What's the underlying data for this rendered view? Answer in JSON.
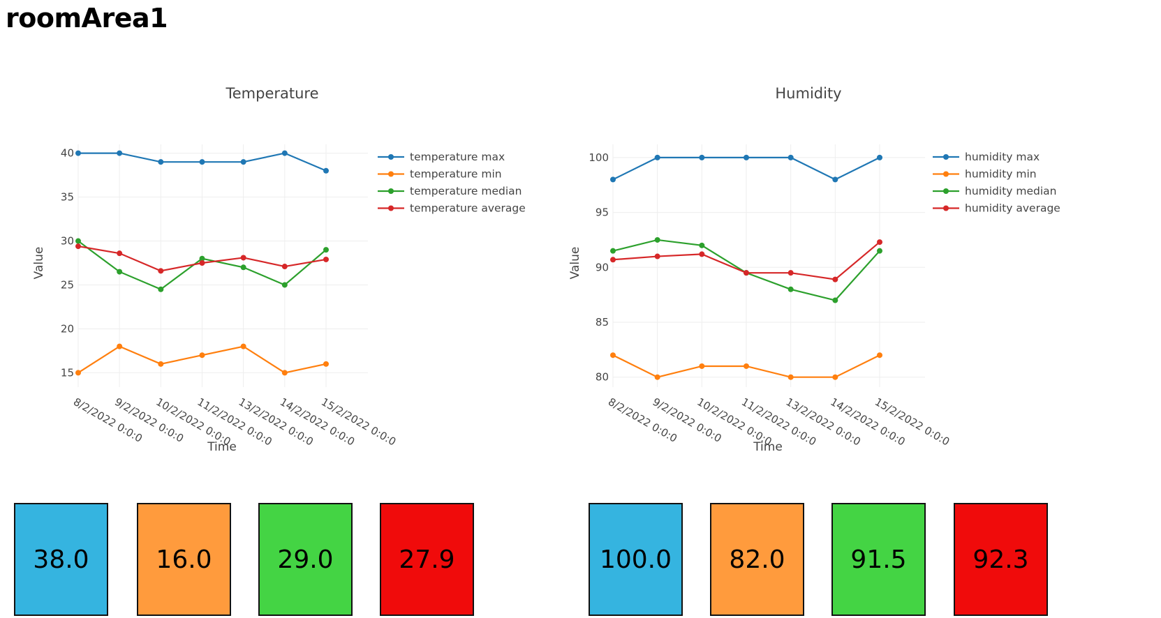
{
  "page": {
    "title": "roomArea1"
  },
  "chart_data": [
    {
      "type": "line",
      "title": "Temperature",
      "xlabel": "Time",
      "ylabel": "Value",
      "x": [
        "8/2/2022 0:0:0",
        "9/2/2022 0:0:0",
        "10/2/2022 0:0:0",
        "11/2/2022 0:0:0",
        "13/2/2022 0:0:0",
        "14/2/2022 0:0:0",
        "15/2/2022 0:0:0"
      ],
      "ylim": [
        14,
        41
      ],
      "yticks": [
        15,
        20,
        25,
        30,
        35,
        40
      ],
      "grid": true,
      "legend": "top-right",
      "series": [
        {
          "name": "temperature max",
          "color": "#1f77b4",
          "values": [
            40,
            40,
            39,
            39,
            39,
            40,
            38
          ]
        },
        {
          "name": "temperature min",
          "color": "#ff7f0e",
          "values": [
            15,
            18,
            16,
            17,
            18,
            15,
            16
          ]
        },
        {
          "name": "temperature median",
          "color": "#2ca02c",
          "values": [
            30,
            26.5,
            24.5,
            28,
            27,
            25,
            29
          ]
        },
        {
          "name": "temperature average",
          "color": "#d62728",
          "values": [
            29.4,
            28.6,
            26.6,
            27.5,
            28.1,
            27.1,
            27.9
          ]
        }
      ]
    },
    {
      "type": "line",
      "title": "Humidity",
      "xlabel": "Time",
      "ylabel": "Value",
      "x": [
        "8/2/2022 0:0:0",
        "9/2/2022 0:0:0",
        "10/2/2022 0:0:0",
        "11/2/2022 0:0:0",
        "13/2/2022 0:0:0",
        "14/2/2022 0:0:0",
        "15/2/2022 0:0:0"
      ],
      "ylim": [
        79.6,
        101.2
      ],
      "yticks": [
        80,
        85,
        90,
        95,
        100
      ],
      "grid": true,
      "legend": "top-right",
      "series": [
        {
          "name": "humidity max",
          "color": "#1f77b4",
          "values": [
            98,
            100,
            100,
            100,
            100,
            98,
            100
          ]
        },
        {
          "name": "humidity min",
          "color": "#ff7f0e",
          "values": [
            82,
            80,
            81,
            81,
            80,
            80,
            82
          ]
        },
        {
          "name": "humidity median",
          "color": "#2ca02c",
          "values": [
            91.5,
            92.5,
            92,
            89.5,
            88,
            87,
            91.5
          ]
        },
        {
          "name": "humidity average",
          "color": "#d62728",
          "values": [
            90.7,
            91,
            91.2,
            89.5,
            89.5,
            88.9,
            92.3
          ]
        }
      ]
    }
  ],
  "cards": {
    "temperature": [
      {
        "value": "38.0",
        "color": "#35b4e0"
      },
      {
        "value": "16.0",
        "color": "#ff9b3d"
      },
      {
        "value": "29.0",
        "color": "#44d444"
      },
      {
        "value": "27.9",
        "color": "#f00b0b"
      }
    ],
    "humidity": [
      {
        "value": "100.0",
        "color": "#35b4e0"
      },
      {
        "value": "82.0",
        "color": "#ff9b3d"
      },
      {
        "value": "91.5",
        "color": "#44d444"
      },
      {
        "value": "92.3",
        "color": "#f00b0b"
      }
    ]
  }
}
